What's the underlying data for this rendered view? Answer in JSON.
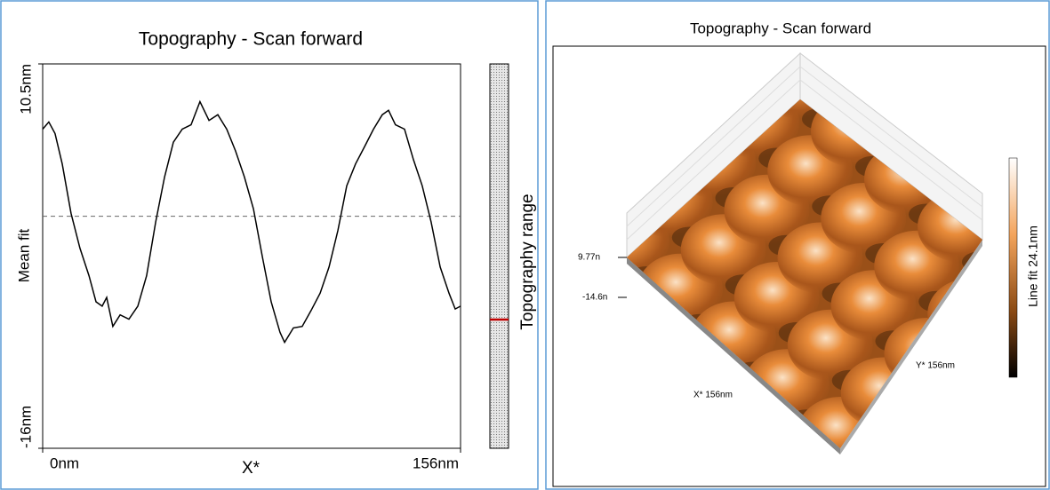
{
  "chart_data": [
    {
      "type": "line",
      "title": "Topography - Scan forward",
      "ylabel": "Mean fit",
      "xlabel": "X*",
      "range_label": "Topography range",
      "xlim": [
        0,
        156
      ],
      "ylim": [
        -16,
        10.5
      ],
      "xticks": [
        {
          "value": 0,
          "label": "0nm"
        },
        {
          "value": 156,
          "label": "156nm"
        }
      ],
      "yticks": [
        {
          "value": -16,
          "label": "-16nm"
        },
        {
          "value": 10.5,
          "label": "10.5nm"
        }
      ],
      "reference_line": 0,
      "color": "#000000",
      "x": [
        0,
        2.3,
        4.6,
        7.3,
        10.6,
        13.9,
        17.3,
        19.9,
        22.2,
        23.9,
        26.2,
        28.9,
        32.2,
        35.5,
        38.8,
        42.2,
        45.5,
        48.8,
        52.1,
        55.4,
        58.7,
        62.1,
        65.4,
        68.7,
        72.0,
        75.3,
        78.7,
        82.0,
        85.3,
        88.6,
        90.3,
        93.6,
        96.9,
        100.2,
        103.6,
        106.9,
        110.2,
        113.5,
        116.8,
        120.2,
        123.5,
        126.8,
        129.1,
        131.7,
        135.1,
        138.4,
        141.7,
        145.0,
        148.4,
        151.7,
        154.0,
        156
      ],
      "values": [
        6.0,
        6.5,
        5.7,
        3.6,
        0.2,
        -2.2,
        -4.1,
        -5.9,
        -6.2,
        -5.6,
        -7.6,
        -6.8,
        -7.1,
        -6.2,
        -4.1,
        -0.4,
        2.7,
        5.1,
        6.0,
        6.3,
        7.9,
        6.6,
        7.0,
        6.0,
        4.5,
        2.7,
        0.5,
        -2.8,
        -5.9,
        -8.0,
        -8.7,
        -7.7,
        -7.6,
        -6.5,
        -5.3,
        -3.5,
        -1.0,
        2.1,
        3.6,
        4.8,
        6.0,
        7.0,
        7.3,
        6.3,
        6.0,
        3.9,
        2.1,
        -0.4,
        -3.5,
        -5.3,
        -6.4,
        -6.2
      ]
    },
    {
      "type": "surface",
      "title": "Topography - Scan forward",
      "zticks": [
        {
          "value": 9.77,
          "label": "9.77n"
        },
        {
          "value": -14.6,
          "label": "-14.6n"
        }
      ],
      "xlabel": "X* 156nm",
      "ylabel": "Y* 156nm",
      "colorbar_label": "Line fit 24.1nm"
    }
  ]
}
